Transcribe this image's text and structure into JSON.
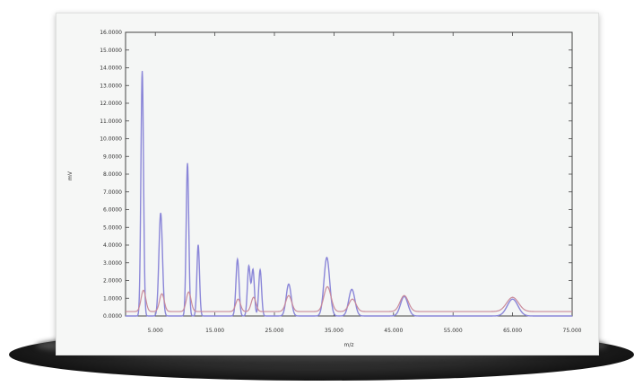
{
  "chart_data": {
    "type": "line",
    "title": "",
    "xlabel": "m/z",
    "ylabel": "mV",
    "xlim": [
      0,
      75000
    ],
    "ylim": [
      0,
      16
    ],
    "x_ticks": [
      5000,
      15000,
      25000,
      35000,
      45000,
      55000,
      65000,
      75000
    ],
    "x_tick_labels": [
      "5.000",
      "15.000",
      "25.000",
      "35.000",
      "45.000",
      "55.000",
      "65.000",
      "75.000"
    ],
    "y_ticks": [
      0,
      1,
      2,
      3,
      4,
      5,
      6,
      7,
      8,
      9,
      10,
      11,
      12,
      13,
      14,
      15,
      16
    ],
    "y_tick_labels": [
      "0.0000",
      "1.0000",
      "2.0000",
      "3.0000",
      "4.0000",
      "5.0000",
      "6.0000",
      "7.0000",
      "8.0000",
      "9.0000",
      "10.0000",
      "11.0000",
      "12.0000",
      "13.0000",
      "14.0000",
      "15.0000",
      "16.0000"
    ],
    "grid": false,
    "legend": "none",
    "series": [
      {
        "color": "#8a86d8",
        "peaks": [
          {
            "x": 2800,
            "height": 13.8,
            "width": 220
          },
          {
            "x": 5900,
            "height": 5.8,
            "width": 300
          },
          {
            "x": 10400,
            "height": 8.6,
            "width": 220
          },
          {
            "x": 12200,
            "height": 4.0,
            "width": 220
          },
          {
            "x": 18800,
            "height": 3.2,
            "width": 260
          },
          {
            "x": 20700,
            "height": 2.8,
            "width": 240
          },
          {
            "x": 21400,
            "height": 2.6,
            "width": 240
          },
          {
            "x": 22600,
            "height": 2.6,
            "width": 240
          },
          {
            "x": 27400,
            "height": 1.8,
            "width": 420
          },
          {
            "x": 33800,
            "height": 3.3,
            "width": 480
          },
          {
            "x": 38000,
            "height": 1.5,
            "width": 520
          },
          {
            "x": 46800,
            "height": 1.1,
            "width": 620
          },
          {
            "x": 65000,
            "height": 0.95,
            "width": 900
          }
        ]
      },
      {
        "color": "#c98a9a",
        "baseline": 0.25,
        "peaks": [
          {
            "x": 3000,
            "height": 1.2,
            "width": 400
          },
          {
            "x": 6100,
            "height": 1.0,
            "width": 400
          },
          {
            "x": 10600,
            "height": 1.1,
            "width": 400
          },
          {
            "x": 18900,
            "height": 0.7,
            "width": 400
          },
          {
            "x": 21500,
            "height": 0.8,
            "width": 400
          },
          {
            "x": 27400,
            "height": 0.9,
            "width": 500
          },
          {
            "x": 33900,
            "height": 1.4,
            "width": 600
          },
          {
            "x": 38100,
            "height": 0.7,
            "width": 600
          },
          {
            "x": 46800,
            "height": 0.9,
            "width": 700
          },
          {
            "x": 65000,
            "height": 0.8,
            "width": 1000
          }
        ]
      }
    ]
  }
}
